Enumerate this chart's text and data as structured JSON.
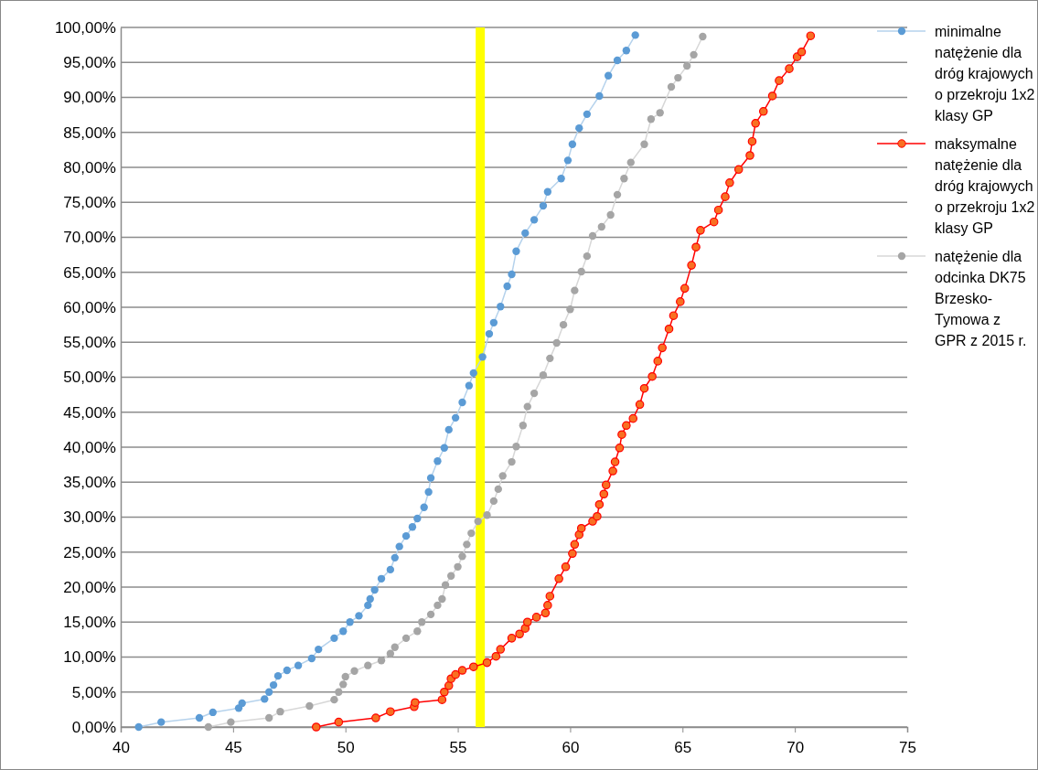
{
  "chart_data": {
    "type": "line",
    "marker": "circle",
    "line_style": "solid",
    "grid": "y",
    "legend": "right",
    "xlim": [
      40,
      75
    ],
    "xticks": [
      40,
      45,
      50,
      55,
      60,
      65,
      70,
      75
    ],
    "ylim": [
      0,
      100
    ],
    "yticks": [
      {
        "value": 0,
        "label": "0,00%"
      },
      {
        "value": 5,
        "label": "5,00%"
      },
      {
        "value": 10,
        "label": "10,00%"
      },
      {
        "value": 15,
        "label": "15,00%"
      },
      {
        "value": 20,
        "label": "20,00%"
      },
      {
        "value": 25,
        "label": "25,00%"
      },
      {
        "value": 30,
        "label": "30,00%"
      },
      {
        "value": 35,
        "label": "35,00%"
      },
      {
        "value": 40,
        "label": "40,00%"
      },
      {
        "value": 45,
        "label": "45,00%"
      },
      {
        "value": 50,
        "label": "50,00%"
      },
      {
        "value": 55,
        "label": "55,00%"
      },
      {
        "value": 60,
        "label": "60,00%"
      },
      {
        "value": 65,
        "label": "65,00%"
      },
      {
        "value": 70,
        "label": "70,00%"
      },
      {
        "value": 75,
        "label": "75,00%"
      },
      {
        "value": 80,
        "label": "80,00%"
      },
      {
        "value": 85,
        "label": "85,00%"
      },
      {
        "value": 90,
        "label": "90,00%"
      },
      {
        "value": 95,
        "label": "95,00%"
      },
      {
        "value": 100,
        "label": "100,00%"
      }
    ],
    "ref_lines": [
      {
        "axis": "x",
        "value": 56,
        "color": "#ffff00"
      }
    ],
    "series": [
      {
        "name": "minimalne natężenie dla dróg krajowych o przekroju 1x2 klasy GP",
        "color": "#5b9bd5",
        "x": [
          40.8,
          41.8,
          43.5,
          44.1,
          45.25,
          45.4,
          46.4,
          46.6,
          46.8,
          47.0,
          47.4,
          47.9,
          48.5,
          48.8,
          49.5,
          49.9,
          50.2,
          50.6,
          51.0,
          51.1,
          51.3,
          51.6,
          52.0,
          52.2,
          52.4,
          52.7,
          52.98,
          53.2,
          53.5,
          53.7,
          53.8,
          54.1,
          54.4,
          54.6,
          54.9,
          55.2,
          55.5,
          55.7,
          56.1,
          56.4,
          56.6,
          56.9,
          57.2,
          57.4,
          57.6,
          58.0,
          58.4,
          58.8,
          59.0,
          59.6,
          59.9,
          60.1,
          60.4,
          60.75,
          61.3,
          61.7,
          62.1,
          62.5,
          62.9
        ],
        "values": [
          0,
          0.7,
          1.3,
          2.1,
          2.7,
          3.4,
          4.0,
          5.0,
          6.0,
          7.3,
          8.1,
          8.8,
          9.8,
          11.1,
          12.7,
          13.7,
          15.0,
          15.9,
          17.4,
          18.3,
          19.6,
          21.2,
          22.5,
          24.2,
          25.8,
          27.3,
          28.6,
          29.8,
          31.4,
          33.6,
          35.6,
          38.0,
          39.9,
          42.5,
          44.2,
          46.4,
          48.8,
          50.6,
          52.9,
          56.2,
          57.8,
          60.1,
          63.0,
          64.7,
          68.0,
          70.6,
          72.5,
          74.5,
          76.5,
          78.4,
          81.0,
          83.3,
          85.6,
          87.6,
          90.2,
          93.1,
          95.3,
          96.7,
          98.9
        ]
      },
      {
        "name": "maksymalne natężenie dla dróg krajowych o przekroju 1x2 klasy GP",
        "color": "#ff0000",
        "x": [
          48.7,
          49.7,
          51.35,
          52.0,
          53.06,
          53.1,
          54.3,
          54.4,
          54.6,
          54.7,
          54.9,
          55.2,
          55.7,
          56.3,
          56.7,
          56.9,
          57.4,
          57.75,
          58.0,
          58.1,
          58.5,
          58.9,
          59.0,
          59.1,
          59.5,
          59.8,
          60.1,
          60.2,
          60.4,
          60.5,
          61.0,
          61.2,
          61.3,
          61.5,
          61.6,
          61.9,
          62.0,
          62.2,
          62.3,
          62.5,
          62.8,
          63.1,
          63.3,
          63.65,
          63.9,
          64.1,
          64.4,
          64.6,
          64.9,
          65.1,
          65.4,
          65.6,
          65.8,
          66.4,
          66.6,
          66.9,
          67.1,
          67.5,
          68.0,
          68.1,
          68.25,
          68.6,
          69.0,
          69.3,
          69.75,
          70.1,
          70.3,
          70.7
        ],
        "values": [
          0,
          0.7,
          1.3,
          2.2,
          2.9,
          3.5,
          3.9,
          5.0,
          5.9,
          6.9,
          7.5,
          8.1,
          8.6,
          9.2,
          10.1,
          11.1,
          12.7,
          13.3,
          14.1,
          15.0,
          15.7,
          16.3,
          17.4,
          18.7,
          21.2,
          22.9,
          24.8,
          26.1,
          27.5,
          28.4,
          29.4,
          30.1,
          31.8,
          33.3,
          34.6,
          36.6,
          37.9,
          39.9,
          41.8,
          43.1,
          44.1,
          46.1,
          48.4,
          50.1,
          52.3,
          54.2,
          56.9,
          58.8,
          60.8,
          62.7,
          66.0,
          68.6,
          71.0,
          72.2,
          73.9,
          75.8,
          77.8,
          79.7,
          81.7,
          83.7,
          86.3,
          88.0,
          90.2,
          92.4,
          94.1,
          95.8,
          96.5,
          98.8
        ]
      },
      {
        "name": "natężenie dla odcinka DK75 Brzesko-Tymowa z GPR z 2015 r.",
        "color": "#a5a5a5",
        "x": [
          43.9,
          44.9,
          46.6,
          47.1,
          48.4,
          49.5,
          49.7,
          49.9,
          50.0,
          50.4,
          51.0,
          51.6,
          52.0,
          52.2,
          52.7,
          53.2,
          53.4,
          53.8,
          54.1,
          54.3,
          54.45,
          54.7,
          55.0,
          55.2,
          55.4,
          55.6,
          55.9,
          56.3,
          56.6,
          56.8,
          57.0,
          57.4,
          57.6,
          57.9,
          58.1,
          58.4,
          58.8,
          59.1,
          59.4,
          59.7,
          60.0,
          60.2,
          60.5,
          60.75,
          61.0,
          61.4,
          61.8,
          62.1,
          62.4,
          62.7,
          63.3,
          63.6,
          64.0,
          64.5,
          64.8,
          65.2,
          65.5,
          65.9
        ],
        "values": [
          0,
          0.7,
          1.3,
          2.2,
          3.0,
          3.9,
          5.0,
          6.1,
          7.2,
          8.0,
          8.8,
          9.5,
          10.5,
          11.4,
          12.7,
          13.7,
          15.0,
          16.1,
          17.4,
          18.3,
          20.3,
          21.6,
          22.9,
          24.4,
          26.1,
          27.7,
          29.4,
          30.3,
          32.3,
          34.0,
          35.9,
          37.9,
          40.1,
          43.1,
          45.8,
          47.7,
          50.3,
          52.7,
          54.9,
          57.5,
          59.7,
          62.4,
          65.1,
          67.3,
          70.2,
          71.5,
          73.2,
          76.1,
          78.4,
          80.7,
          83.3,
          86.9,
          87.8,
          91.5,
          92.8,
          94.5,
          96.1,
          98.7
        ]
      }
    ]
  }
}
